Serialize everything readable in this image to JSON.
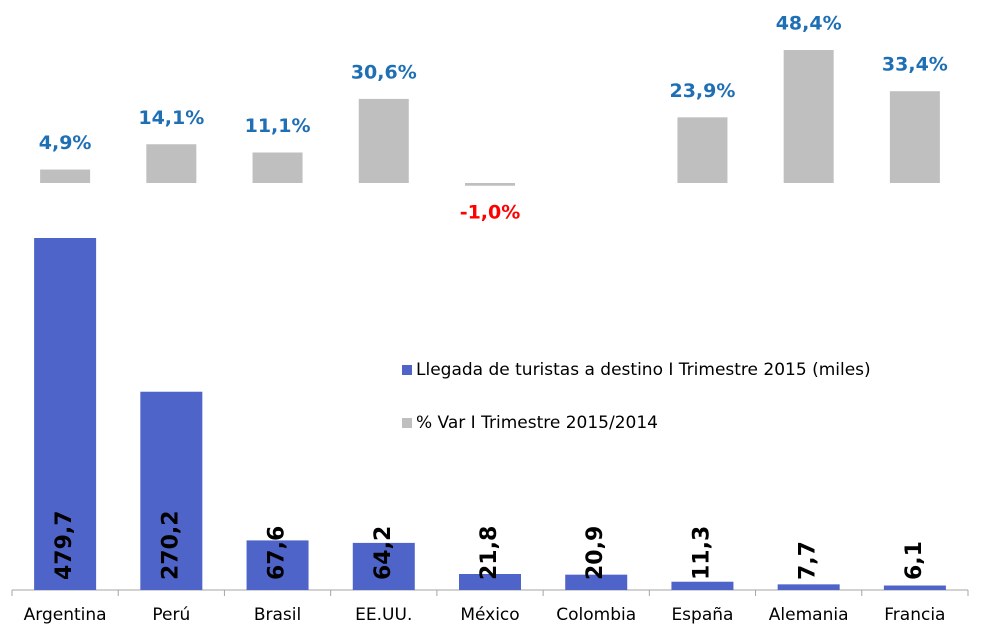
{
  "chart_data": {
    "type": "bar",
    "categories": [
      "Argentina",
      "Perú",
      "Brasil",
      "EE.UU.",
      "México",
      "Colombia",
      "España",
      "Alemania",
      "Francia"
    ],
    "series": [
      {
        "name": "Llegada de turistas a destino I Trimestre 2015 (miles)",
        "color": "#4f64c8",
        "values": [
          479.7,
          270.2,
          67.6,
          64.2,
          21.8,
          20.9,
          11.3,
          7.7,
          6.1
        ],
        "value_labels": [
          "479,7",
          "270,2",
          "67,6",
          "64,2",
          "21,8",
          "20,9",
          "11,3",
          "7,7",
          "6,1"
        ],
        "label_color": "#000000"
      },
      {
        "name": "% Var I Trimestre 2015/2014",
        "color": "#bfbfbf",
        "values": [
          4.9,
          14.1,
          11.1,
          30.6,
          -1.0,
          null,
          23.9,
          48.4,
          33.4
        ],
        "value_labels": [
          "4,9%",
          "14,1%",
          "11,1%",
          "30,6%",
          "-1,0%",
          null,
          "23,9%",
          "48,4%",
          "33,4%"
        ],
        "label_color": "#1f6fb5",
        "negative_label_color": "#ff0000"
      }
    ]
  }
}
